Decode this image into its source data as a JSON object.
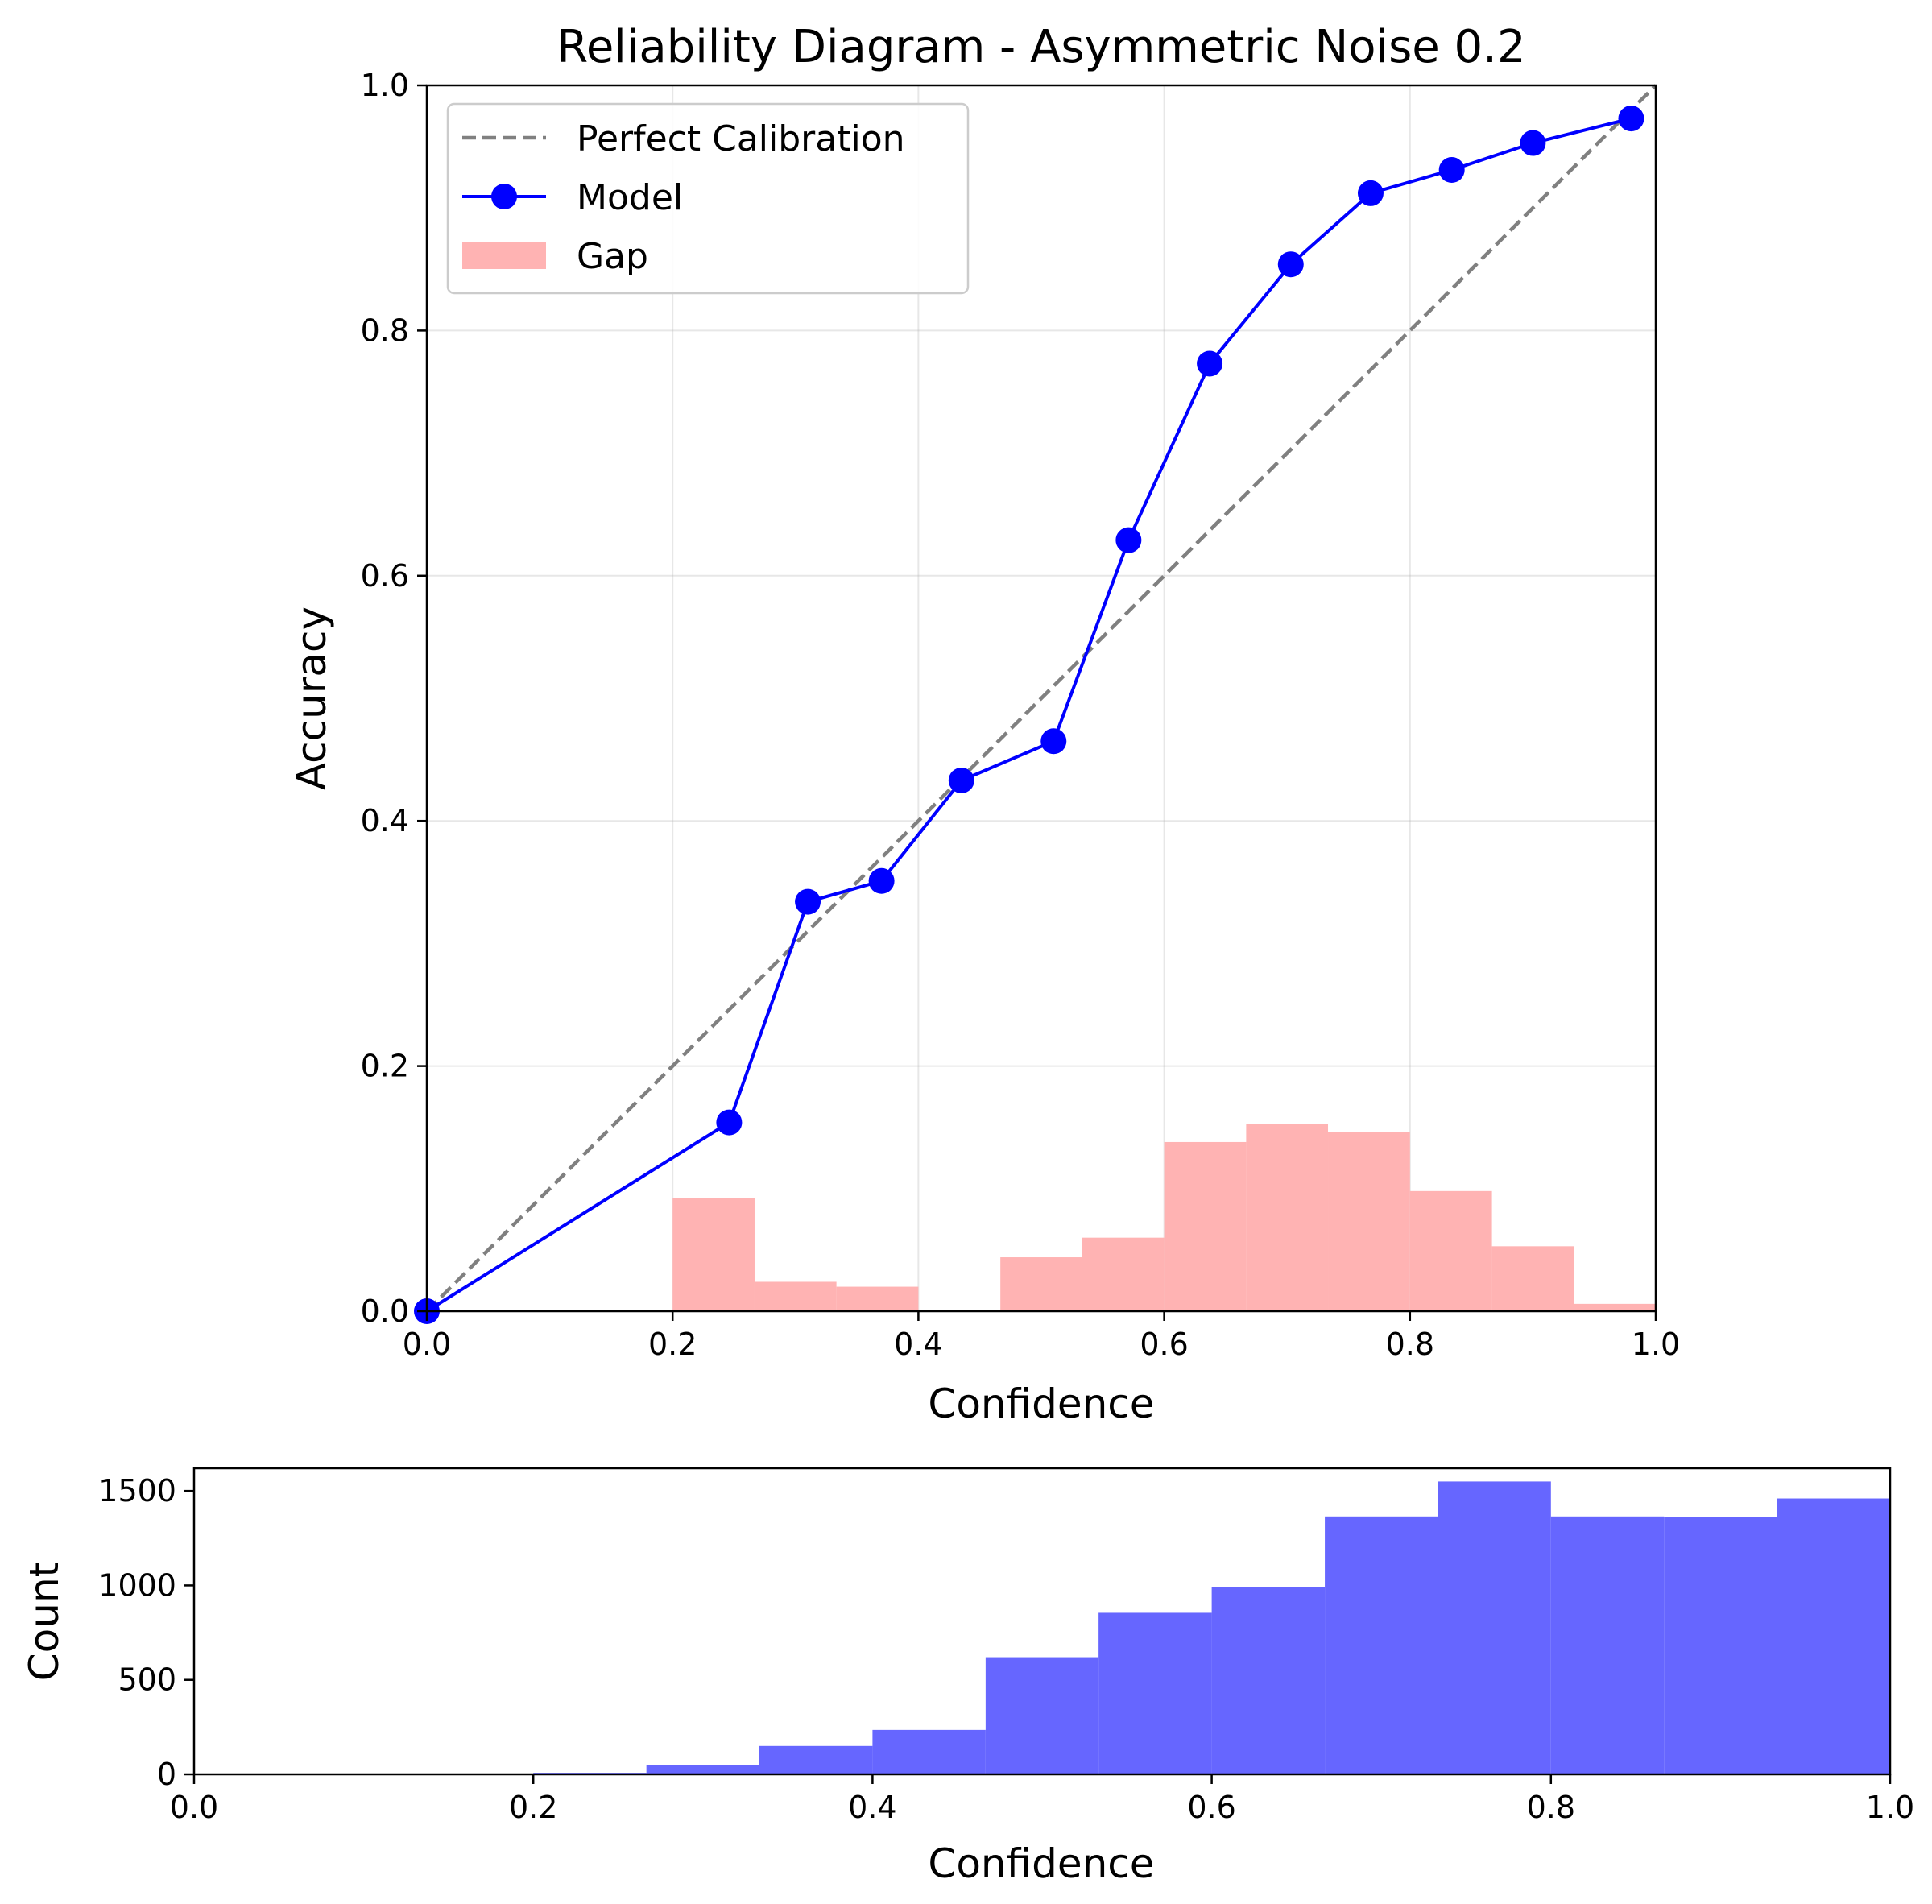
{
  "chart_data": [
    {
      "type": "line",
      "title": "Reliability Diagram - Asymmetric Noise 0.2",
      "xlabel": "Confidence",
      "ylabel": "Accuracy",
      "xlim": [
        0.0,
        1.0
      ],
      "ylim": [
        0.0,
        1.0
      ],
      "xticks": [
        "0.0",
        "0.2",
        "0.4",
        "0.6",
        "0.8",
        "1.0"
      ],
      "yticks": [
        "0.0",
        "0.2",
        "0.4",
        "0.6",
        "0.8",
        "1.0"
      ],
      "grid": true,
      "legend": "upper-left",
      "legend_entries": [
        "Perfect Calibration",
        "Model",
        "Gap"
      ],
      "series": [
        {
          "name": "Perfect Calibration",
          "style": "dashed",
          "color": "#808080",
          "x": [
            0.0,
            1.0
          ],
          "y": [
            0.0,
            1.0
          ]
        },
        {
          "name": "Model",
          "style": "line-with-markers",
          "color": "#0000ff",
          "x": [
            0.0,
            0.246,
            0.31,
            0.37,
            0.435,
            0.51,
            0.571,
            0.637,
            0.703,
            0.768,
            0.834,
            0.9,
            0.98
          ],
          "y": [
            0.0,
            0.154,
            0.334,
            0.351,
            0.433,
            0.465,
            0.629,
            0.773,
            0.854,
            0.912,
            0.931,
            0.953,
            0.973
          ]
        }
      ],
      "gap_bars": {
        "name": "Gap",
        "color": "#ffb3b3",
        "bin_edges": [
          0.0,
          0.0667,
          0.1333,
          0.2,
          0.2667,
          0.3333,
          0.4,
          0.4667,
          0.5333,
          0.6,
          0.6667,
          0.7333,
          0.8,
          0.8667,
          0.9333,
          1.0
        ],
        "values": [
          0,
          0,
          0,
          0.092,
          0.024,
          0.02,
          0,
          0.044,
          0.06,
          0.138,
          0.153,
          0.146,
          0.098,
          0.053,
          0.006
        ]
      }
    },
    {
      "type": "bar",
      "xlabel": "Confidence",
      "ylabel": "Count",
      "xlim": [
        0.0,
        1.0
      ],
      "ylim": [
        0,
        1620
      ],
      "xticks": [
        "0.0",
        "0.2",
        "0.4",
        "0.6",
        "0.8",
        "1.0"
      ],
      "yticks": [
        0,
        500,
        1000,
        1500
      ],
      "color": "#6666ff",
      "bin_edges": [
        0.0,
        0.0667,
        0.1333,
        0.2,
        0.2667,
        0.3333,
        0.4,
        0.4667,
        0.5333,
        0.6,
        0.6667,
        0.7333,
        0.8,
        0.8667,
        0.9333,
        1.0
      ],
      "values": [
        0,
        0,
        0,
        8,
        50,
        150,
        235,
        620,
        855,
        990,
        1365,
        1550,
        1365,
        1360,
        1460
      ]
    }
  ]
}
